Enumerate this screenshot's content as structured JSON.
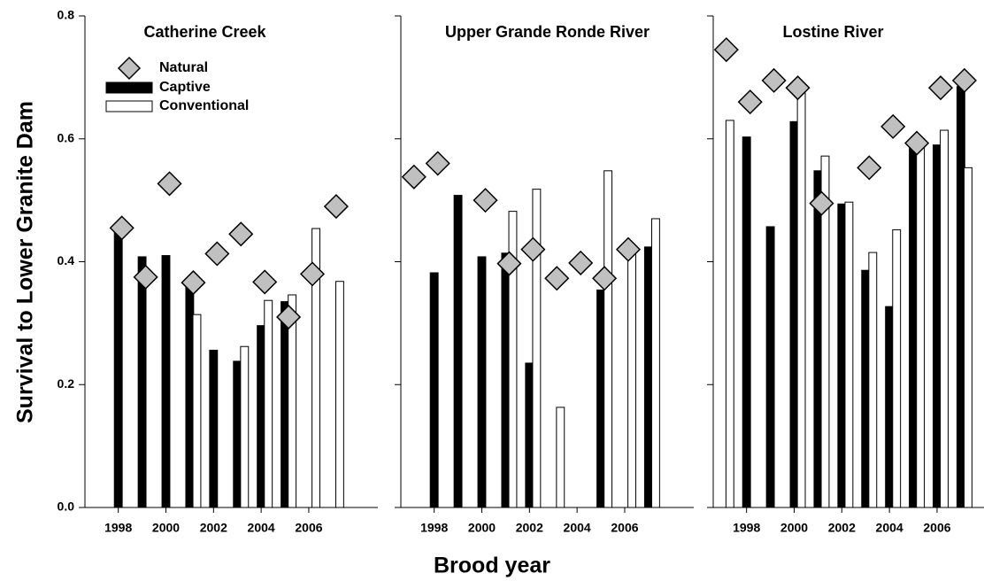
{
  "xlabel": "Brood year",
  "ylabel": "Survival to Lower Granite Dam",
  "chart_data": [
    {
      "type": "bar",
      "title": "Catherine Creek",
      "x": [
        1998,
        1999,
        2000,
        2001,
        2002,
        2003,
        2004,
        2005,
        2006,
        2007
      ],
      "xlim": [
        1996.6,
        2008.9
      ],
      "xticks": [
        1998,
        2000,
        2002,
        2004,
        2006
      ],
      "ylim": [
        0,
        0.8
      ],
      "yticks": [
        {
          "value": 0,
          "label": "0.0"
        },
        0.2,
        0.4,
        0.6,
        0.8
      ],
      "series": [
        {
          "name": "Natural",
          "style": "diamond",
          "color": "#c0c0c0",
          "values": [
            0.455,
            0.375,
            0.527,
            0.366,
            0.413,
            0.445,
            0.367,
            0.31,
            0.38,
            0.49
          ]
        },
        {
          "name": "Captive",
          "style": "bar",
          "color": "#000000",
          "values": [
            0.46,
            0.408,
            0.41,
            0.36,
            0.256,
            0.238,
            0.296,
            0.335,
            null,
            null
          ]
        },
        {
          "name": "Conventional",
          "style": "bar",
          "color": "#ffffff",
          "values": [
            null,
            null,
            null,
            0.314,
            null,
            0.262,
            0.337,
            0.346,
            0.454,
            0.368
          ]
        }
      ]
    },
    {
      "type": "bar",
      "title": "Upper Grande Ronde River",
      "x": [
        1997,
        1998,
        1999,
        2000,
        2001,
        2002,
        2003,
        2004,
        2005,
        2006,
        2007
      ],
      "xlim": [
        1996.6,
        2008.9
      ],
      "xticks": [
        1998,
        2000,
        2002,
        2004,
        2006
      ],
      "ylim": [
        0,
        0.8
      ],
      "yticks": [
        0,
        0.2,
        0.4,
        0.6,
        0.8
      ],
      "series": [
        {
          "style": "diamond",
          "color": "#c0c0c0",
          "values": [
            0.538,
            0.56,
            null,
            0.5,
            0.397,
            0.42,
            0.373,
            0.398,
            0.373,
            0.42,
            null
          ]
        },
        {
          "style": "bar",
          "color": "#000000",
          "values": [
            null,
            0.382,
            0.508,
            0.408,
            0.414,
            0.235,
            null,
            null,
            0.354,
            null,
            0.424
          ]
        },
        {
          "style": "bar",
          "color": "#ffffff",
          "values": [
            null,
            null,
            null,
            null,
            0.482,
            0.518,
            0.163,
            null,
            0.548,
            0.413,
            0.47
          ]
        }
      ]
    },
    {
      "type": "bar",
      "title": "Lostine River",
      "x": [
        1997,
        1998,
        1999,
        2000,
        2001,
        2002,
        2003,
        2004,
        2005,
        2006,
        2007
      ],
      "xlim": [
        1996.6,
        2008.9
      ],
      "xticks": [
        1998,
        2000,
        2002,
        2004,
        2006
      ],
      "ylim": [
        0,
        0.8
      ],
      "yticks": [
        0,
        0.2,
        0.4,
        0.6,
        0.8
      ],
      "series": [
        {
          "style": "diamond",
          "color": "#c0c0c0",
          "values": [
            0.745,
            0.66,
            0.695,
            0.683,
            0.495,
            null,
            0.553,
            0.62,
            0.593,
            0.683,
            0.695
          ]
        },
        {
          "style": "bar",
          "color": "#000000",
          "values": [
            null,
            0.603,
            0.457,
            0.628,
            0.548,
            0.494,
            0.386,
            0.327,
            0.597,
            0.59,
            0.685
          ]
        },
        {
          "style": "bar",
          "color": "#ffffff",
          "values": [
            0.63,
            null,
            null,
            0.678,
            0.572,
            0.497,
            0.415,
            0.452,
            0.6,
            0.614,
            0.553
          ]
        }
      ]
    }
  ]
}
